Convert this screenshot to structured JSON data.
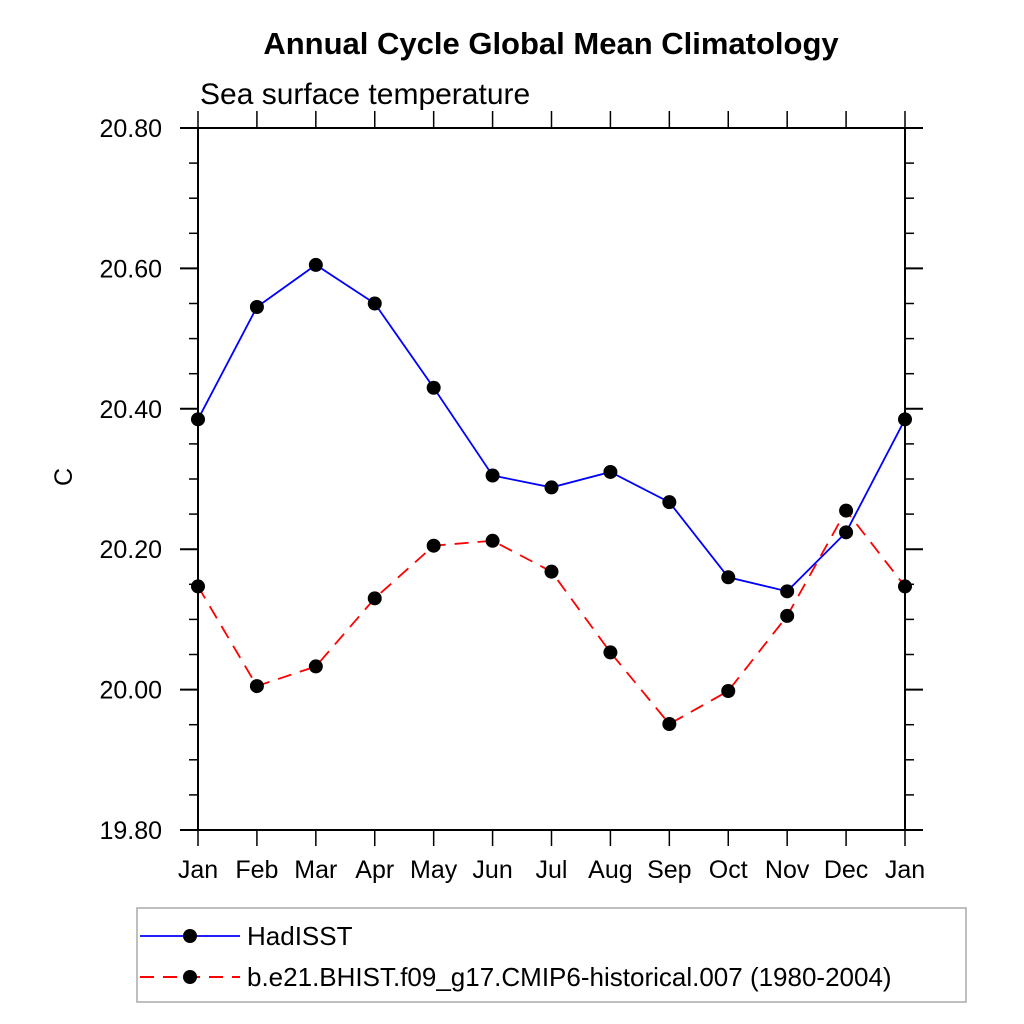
{
  "chart_data": {
    "type": "line",
    "title": "Annual Cycle Global Mean Climatology",
    "subtitle": "Sea surface temperature",
    "ylabel": "C",
    "xlabel": "",
    "x_tick_labels": [
      "Jan",
      "Feb",
      "Mar",
      "Apr",
      "May",
      "Jun",
      "Jul",
      "Aug",
      "Sep",
      "Oct",
      "Nov",
      "Dec",
      "Jan"
    ],
    "ylim": [
      19.8,
      20.8
    ],
    "y_major_ticks": [
      "19.80",
      "20.00",
      "20.20",
      "20.40",
      "20.60",
      "20.80"
    ],
    "y_minor_step": 0.05,
    "grid": false,
    "frame_color": "#000000",
    "marker_color": "#000000",
    "legend_position": "bottom-left",
    "legend_border_color": "#aaaaaa",
    "series": [
      {
        "name": "HadISST",
        "color": "#0000ff",
        "style": "solid",
        "marker": "filled-circle",
        "values": [
          20.385,
          20.545,
          20.605,
          20.55,
          20.43,
          20.305,
          20.288,
          20.31,
          20.267,
          20.16,
          20.14,
          20.224,
          20.385
        ]
      },
      {
        "name": "b.e21.BHIST.f09_g17.CMIP6-historical.007 (1980-2004)",
        "color": "#ff0000",
        "style": "dashed",
        "marker": "filled-circle",
        "values": [
          20.147,
          20.005,
          20.033,
          20.13,
          20.205,
          20.212,
          20.168,
          20.053,
          19.951,
          19.998,
          20.105,
          20.255,
          20.147
        ]
      }
    ]
  }
}
